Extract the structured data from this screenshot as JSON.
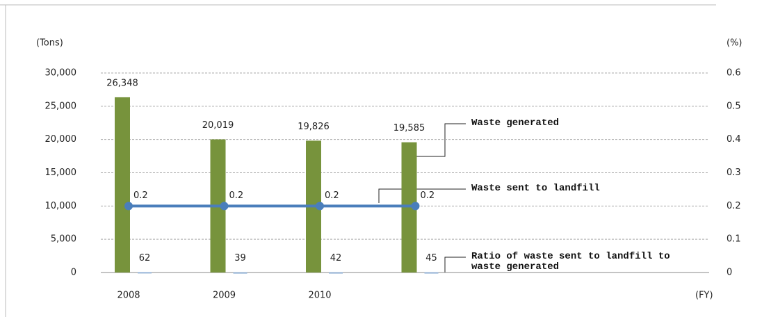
{
  "chart_data": {
    "type": "bar",
    "y_label": "(Tons)",
    "y2_label": "(%)",
    "x_label": "(FY)",
    "categories": [
      "2008",
      "2009",
      "2010",
      null
    ],
    "series": [
      {
        "name": "Waste generated",
        "type": "bar",
        "color": "#77933c",
        "values": [
          26348,
          20019,
          19826,
          19585
        ],
        "value_labels": [
          "26,348",
          "20,019",
          "19,826",
          "19,585"
        ]
      },
      {
        "name": "Waste sent to landfill",
        "type": "bar",
        "color": "#95b3d7",
        "values": [
          62,
          39,
          42,
          45
        ]
      },
      {
        "name": "Ratio of waste sent to landfill to waste generated",
        "type": "line",
        "axis": "y2",
        "color": "#4a7ebb",
        "values": [
          0.2,
          0.2,
          0.2,
          0.2
        ]
      }
    ],
    "ylim": [
      0,
      30000
    ],
    "yticks": [
      0,
      {
        "value": 5000,
        "label": "5,000"
      },
      {
        "value": 10000,
        "label": "10,000"
      },
      {
        "value": 15000,
        "label": "15,000"
      },
      {
        "value": 20000,
        "label": "20,000"
      },
      {
        "value": 25000,
        "label": "25,000"
      },
      {
        "value": 30000,
        "label": "30,000"
      }
    ],
    "y2lim": [
      0,
      0.6
    ],
    "y2ticks": [
      0,
      0.1,
      0.2,
      0.3,
      0.4,
      0.5,
      0.6
    ],
    "grid": true
  }
}
